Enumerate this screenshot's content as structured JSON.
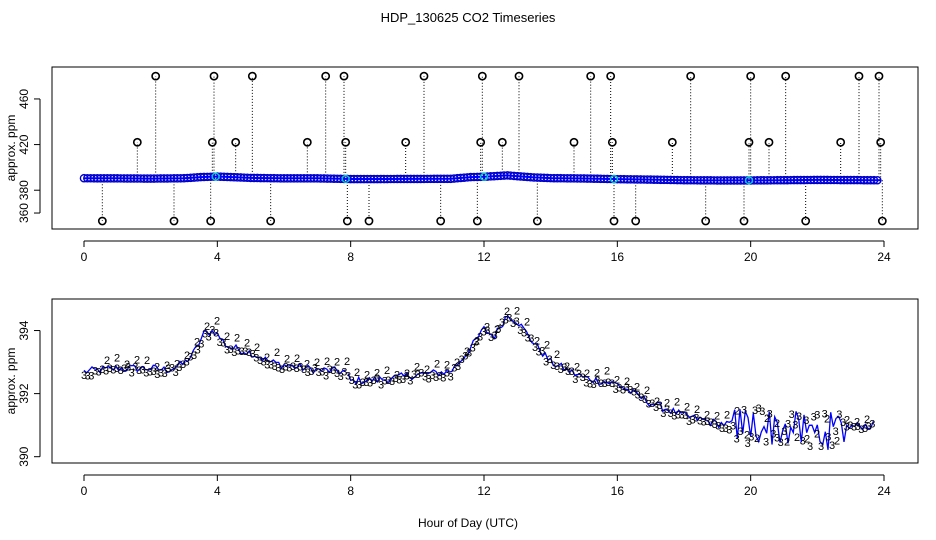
{
  "title": "HDP_130625  CO2 Timeseries",
  "xlabel": "Hour of Day (UTC)",
  "colors": {
    "points": "#0000cc",
    "line": "#0000ff",
    "outlier": "#000000",
    "highlight": "#00cccc",
    "series2": "#00bb00",
    "series3": "#0000cc"
  },
  "chart_data": [
    {
      "type": "scatter",
      "title": "HDP_130625  CO2 Timeseries",
      "ylabel": "approx. ppm",
      "xlim": [
        0,
        24
      ],
      "ylim": [
        346,
        488
      ],
      "xticks": [
        0,
        4,
        8,
        12,
        16,
        20,
        24
      ],
      "yticks": [
        360,
        380,
        420,
        460
      ],
      "ytick_labels": [
        "360",
        "380",
        "420",
        "460"
      ],
      "baseline": [
        [
          0,
          390.5
        ],
        [
          1,
          390.4
        ],
        [
          2,
          390.2
        ],
        [
          3,
          390.5
        ],
        [
          3.5,
          391.5
        ],
        [
          4,
          392
        ],
        [
          5,
          390.8
        ],
        [
          6,
          390.4
        ],
        [
          7,
          390.4
        ],
        [
          8,
          389.8
        ],
        [
          9,
          389.8
        ],
        [
          10,
          389.9
        ],
        [
          11,
          390
        ],
        [
          11.6,
          391.5
        ],
        [
          12,
          391.8
        ],
        [
          12.7,
          393
        ],
        [
          13.5,
          391.2
        ],
        [
          14,
          390.6
        ],
        [
          15,
          390.3
        ],
        [
          16,
          389.7
        ],
        [
          17,
          389.3
        ],
        [
          18,
          388.8
        ],
        [
          19,
          388.6
        ],
        [
          20,
          388.6
        ],
        [
          21,
          388.8
        ],
        [
          22,
          389.0
        ],
        [
          23,
          388.9
        ],
        [
          23.9,
          388.7
        ]
      ],
      "outliers_high": [
        2.15,
        3.9,
        5.05,
        7.25,
        7.8,
        10.2,
        11.95,
        13.05,
        15.2,
        15.8,
        18.2,
        20.0,
        21.05,
        23.25,
        23.85
      ],
      "outliers_mid": [
        1.6,
        3.85,
        4.55,
        6.7,
        7.85,
        9.65,
        11.9,
        12.55,
        14.7,
        15.85,
        17.65,
        19.95,
        20.55,
        22.7,
        23.9
      ],
      "outliers_low": [
        0.55,
        2.7,
        3.8,
        5.6,
        7.9,
        8.55,
        10.7,
        11.8,
        13.6,
        15.9,
        16.55,
        18.65,
        19.8,
        21.65,
        23.95
      ],
      "outlier_values": {
        "high": 480,
        "mid": 422,
        "low": 353
      }
    },
    {
      "type": "scatter",
      "ylabel": "approx. ppm",
      "xlim": [
        0,
        24
      ],
      "ylim": [
        389.8,
        395.0
      ],
      "xticks": [
        0,
        4,
        8,
        12,
        16,
        20,
        24
      ],
      "yticks": [
        390,
        392,
        394
      ],
      "series_labels": [
        "2",
        "3"
      ],
      "trend": [
        [
          0,
          392.7
        ],
        [
          0.5,
          392.75
        ],
        [
          1,
          392.8
        ],
        [
          1.5,
          392.8
        ],
        [
          2,
          392.8
        ],
        [
          2.5,
          392.75
        ],
        [
          3,
          392.95
        ],
        [
          3.3,
          393.3
        ],
        [
          3.6,
          393.9
        ],
        [
          3.9,
          394.0
        ],
        [
          4.3,
          393.5
        ],
        [
          5,
          393.3
        ],
        [
          5.6,
          393.0
        ],
        [
          6,
          392.9
        ],
        [
          7,
          392.75
        ],
        [
          7.9,
          392.7
        ],
        [
          8,
          392.4
        ],
        [
          9,
          392.45
        ],
        [
          10,
          392.6
        ],
        [
          11,
          392.7
        ],
        [
          11.5,
          393.3
        ],
        [
          12,
          394.05
        ],
        [
          12.3,
          393.8
        ],
        [
          12.7,
          394.5
        ],
        [
          13,
          394.3
        ],
        [
          13.5,
          393.6
        ],
        [
          14,
          393.0
        ],
        [
          15,
          392.5
        ],
        [
          16,
          392.3
        ],
        [
          17,
          391.7
        ],
        [
          18,
          391.3
        ],
        [
          19,
          391.05
        ],
        [
          20,
          391.0
        ],
        [
          21,
          390.9
        ],
        [
          22,
          390.75
        ],
        [
          23,
          390.95
        ],
        [
          23.7,
          391.0
        ]
      ]
    }
  ]
}
